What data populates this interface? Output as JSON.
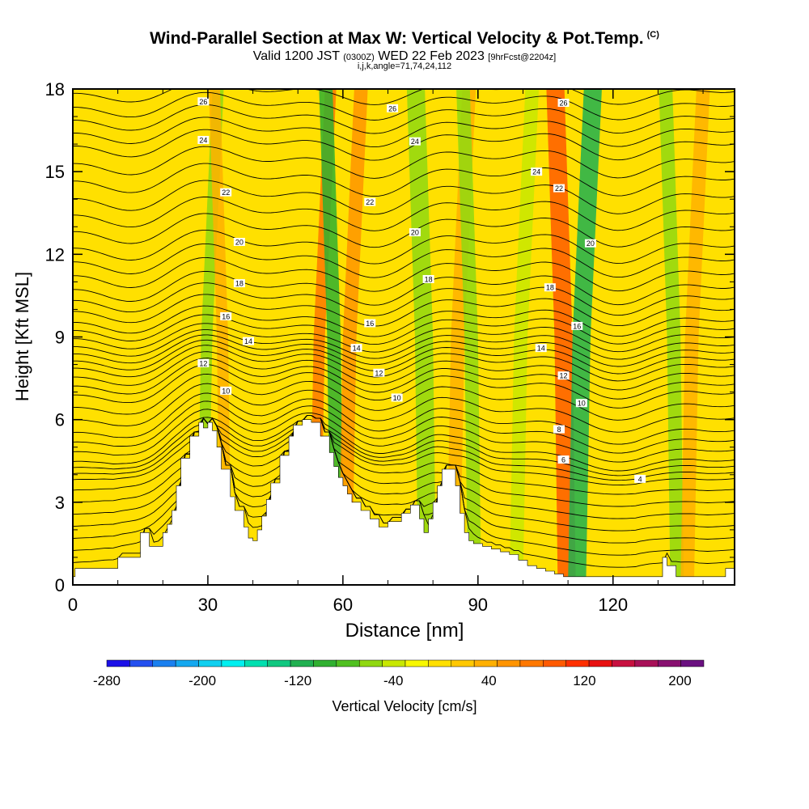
{
  "header": {
    "title": "Wind-Parallel Section at Max W: Vertical Velocity & Pot.Temp.",
    "title_mark": "(C)",
    "valid_prefix": "Valid 1200 JST",
    "valid_utc": "(0300Z)",
    "valid_date": "WED 22 Feb 2023",
    "forecast": "[9hrFcst@2204z]",
    "params": "i,j,k,angle=71,74,24,112"
  },
  "chart_data": {
    "type": "heatmap",
    "xlabel": "Distance [nm]",
    "ylabel": "Height [Kft MSL]",
    "xlim": [
      0,
      147
    ],
    "ylim": [
      0,
      18
    ],
    "x_ticks": [
      0,
      30,
      60,
      90,
      120
    ],
    "y_ticks": [
      0,
      3,
      6,
      9,
      12,
      15,
      18
    ],
    "x_tick_labels": [
      "0",
      "30",
      "60",
      "90",
      "120"
    ],
    "y_tick_labels": [
      "0",
      "3",
      "6",
      "9",
      "12",
      "15",
      "18"
    ],
    "colorbar": {
      "label": "Vertical Velocity [cm/s]",
      "levels": [
        -280,
        -260,
        -240,
        -220,
        -200,
        -180,
        -160,
        -140,
        -120,
        -100,
        -80,
        -60,
        -40,
        -20,
        0,
        20,
        40,
        60,
        80,
        100,
        120,
        140,
        160,
        180,
        200,
        220
      ],
      "tick_values": [
        -280,
        -200,
        -120,
        -40,
        40,
        120,
        200
      ],
      "tick_labels": [
        "-280",
        "-200",
        "-120",
        "-40",
        "40",
        "120",
        "200"
      ],
      "colors": [
        "#1c10e8",
        "#2450f0",
        "#1a80f0",
        "#14a8f0",
        "#10d0f0",
        "#00f0f0",
        "#00e0b0",
        "#10c880",
        "#20b050",
        "#30b030",
        "#50c020",
        "#90d810",
        "#c8e800",
        "#f8f800",
        "#ffe000",
        "#ffc800",
        "#ffb000",
        "#ff9400",
        "#ff7800",
        "#ff5a00",
        "#ff3000",
        "#e81010",
        "#c81040",
        "#a81058",
        "#881070",
        "#6a1080"
      ]
    },
    "terrain": {
      "x": [
        0,
        0.5,
        0.5,
        2,
        2,
        10,
        10,
        15,
        15,
        16,
        16,
        17,
        17,
        18,
        18,
        20,
        20,
        21,
        21,
        22,
        22,
        23,
        23,
        24,
        24,
        26,
        26,
        28,
        28,
        29,
        29,
        30,
        30,
        31,
        31,
        32,
        32,
        33,
        33,
        35,
        35,
        36,
        36,
        38,
        38,
        39,
        39,
        40,
        40,
        41,
        41,
        42,
        42,
        43,
        43,
        44,
        44,
        46,
        46,
        48,
        48,
        49,
        49,
        51,
        51,
        53,
        53,
        55,
        55,
        57,
        57,
        58,
        58,
        59,
        59,
        60,
        60,
        61,
        61,
        62,
        62,
        64,
        64,
        66,
        66,
        68,
        68,
        70,
        70,
        73,
        73,
        75,
        75,
        77,
        77,
        78,
        78,
        79,
        79,
        80,
        80,
        81,
        81,
        82,
        82,
        83,
        83,
        85,
        85,
        86,
        86,
        87,
        87,
        88,
        88,
        89,
        89,
        91,
        91,
        93,
        93,
        95,
        95,
        97,
        97,
        99,
        99,
        101,
        101,
        103,
        103,
        105,
        105,
        107,
        107,
        109,
        109,
        111,
        111,
        131,
        131,
        132,
        132,
        134,
        134,
        135,
        135,
        145,
        145,
        147
      ],
      "y": [
        0.3,
        0.3,
        0.6,
        0.6,
        0.6,
        0.6,
        1.0,
        1.0,
        1.9,
        1.9,
        1.9,
        1.9,
        1.4,
        1.4,
        1.4,
        1.4,
        1.9,
        1.9,
        2.2,
        2.2,
        2.7,
        2.7,
        3.6,
        3.6,
        4.6,
        4.6,
        5.4,
        5.4,
        5.9,
        5.9,
        5.7,
        5.7,
        5.9,
        5.9,
        5.6,
        5.6,
        5.0,
        5.0,
        4.2,
        4.2,
        3.2,
        3.2,
        2.7,
        2.7,
        2.1,
        2.1,
        1.7,
        1.7,
        1.6,
        1.6,
        2.0,
        2.0,
        2.5,
        2.5,
        3.1,
        3.1,
        3.7,
        3.7,
        4.7,
        4.7,
        5.4,
        5.4,
        5.8,
        5.8,
        6.0,
        6.0,
        5.9,
        5.9,
        5.4,
        5.4,
        4.8,
        4.8,
        4.3,
        4.3,
        3.9,
        3.9,
        3.6,
        3.6,
        3.3,
        3.3,
        3.0,
        3.0,
        2.7,
        2.7,
        2.4,
        2.4,
        2.1,
        2.1,
        2.3,
        2.3,
        2.6,
        2.6,
        2.9,
        2.9,
        2.4,
        2.4,
        1.9,
        1.9,
        2.4,
        2.4,
        3.0,
        3.0,
        3.6,
        3.6,
        4.2,
        4.2,
        4.2,
        4.2,
        3.6,
        3.6,
        2.6,
        2.6,
        1.9,
        1.9,
        1.6,
        1.6,
        1.5,
        1.5,
        1.4,
        1.4,
        1.3,
        1.3,
        1.2,
        1.2,
        1.1,
        1.1,
        0.9,
        0.9,
        0.7,
        0.7,
        0.6,
        0.6,
        0.5,
        0.5,
        0.4,
        0.4,
        0.3,
        0.3,
        0.3,
        0.3,
        1.0,
        1.0,
        0.7,
        0.7,
        0.3,
        0.3,
        0.3,
        0.3,
        0.6,
        0.6
      ]
    },
    "contours": [
      {
        "level": 26,
        "label": "26",
        "label_x": 29,
        "y": 17.4,
        "amp": 0.9
      },
      {
        "level": 24,
        "label": "24",
        "label_x": 29,
        "y": 16.0,
        "amp": 1.0
      },
      {
        "level": 22,
        "label": "22",
        "label_x": 34,
        "y": 14.1,
        "amp": 1.1
      },
      {
        "level": 20,
        "label": "20",
        "label_x": 37,
        "y": 12.3,
        "amp": 1.1
      },
      {
        "level": 18,
        "label": "18",
        "label_x": 37,
        "y": 10.8,
        "amp": 1.1
      },
      {
        "level": 16,
        "label": "16",
        "label_x": 34,
        "y": 9.6,
        "amp": 1.0
      },
      {
        "level": 14,
        "label": "14",
        "label_x": 39,
        "y": 8.7,
        "amp": 0.9
      },
      {
        "level": 12,
        "label": "12",
        "label_x": 29,
        "y": 7.9,
        "amp": 0.9
      },
      {
        "level": 10,
        "label": "10",
        "label_x": 34,
        "y": 6.9,
        "amp": 0.9
      },
      {
        "level": 8,
        "label": "8",
        "label_x": 108,
        "y": 5.5,
        "amp": 0.8
      },
      {
        "level": 6,
        "label": "6",
        "label_x": 109,
        "y": 4.4,
        "amp": 0.6
      },
      {
        "level": 4,
        "label": "4",
        "label_x": 126,
        "y": 3.7,
        "amp": 0.3
      }
    ],
    "contour_labels": [
      {
        "x": 71,
        "y": 17.3,
        "text": "26"
      },
      {
        "x": 109,
        "y": 17.5,
        "text": "26"
      },
      {
        "x": 76,
        "y": 16.1,
        "text": "24"
      },
      {
        "x": 103,
        "y": 15.0,
        "text": "24"
      },
      {
        "x": 66,
        "y": 13.9,
        "text": "22"
      },
      {
        "x": 108,
        "y": 14.4,
        "text": "22"
      },
      {
        "x": 76,
        "y": 12.8,
        "text": "20"
      },
      {
        "x": 115,
        "y": 12.4,
        "text": "20"
      },
      {
        "x": 79,
        "y": 11.1,
        "text": "18"
      },
      {
        "x": 106,
        "y": 10.8,
        "text": "18"
      },
      {
        "x": 66,
        "y": 9.5,
        "text": "16"
      },
      {
        "x": 112,
        "y": 9.4,
        "text": "16"
      },
      {
        "x": 63,
        "y": 8.6,
        "text": "14"
      },
      {
        "x": 104,
        "y": 8.6,
        "text": "14"
      },
      {
        "x": 68,
        "y": 7.7,
        "text": "12"
      },
      {
        "x": 109,
        "y": 7.6,
        "text": "12"
      },
      {
        "x": 72,
        "y": 6.8,
        "text": "10"
      },
      {
        "x": 113,
        "y": 6.6,
        "text": "10"
      }
    ],
    "velocity_bands": [
      {
        "x": 28.5,
        "width": 2.5,
        "value": -60
      },
      {
        "x": 32,
        "width": 2.5,
        "value": 40
      },
      {
        "x": 53.5,
        "width": 2.5,
        "value": 80
      },
      {
        "x": 56.5,
        "width": 3,
        "value": -100
      },
      {
        "x": 60,
        "width": 3,
        "value": 60
      },
      {
        "x": 76,
        "width": 4,
        "value": -60
      },
      {
        "x": 84,
        "width": 3,
        "value": 40
      },
      {
        "x": 87,
        "width": 3,
        "value": -60
      },
      {
        "x": 98,
        "width": 3,
        "value": -40
      },
      {
        "x": 107,
        "width": 4,
        "value": 110
      },
      {
        "x": 111,
        "width": 4,
        "value": -110
      },
      {
        "x": 132,
        "width": 3,
        "value": -60
      },
      {
        "x": 136,
        "width": 3,
        "value": 40
      }
    ],
    "grid": false
  }
}
